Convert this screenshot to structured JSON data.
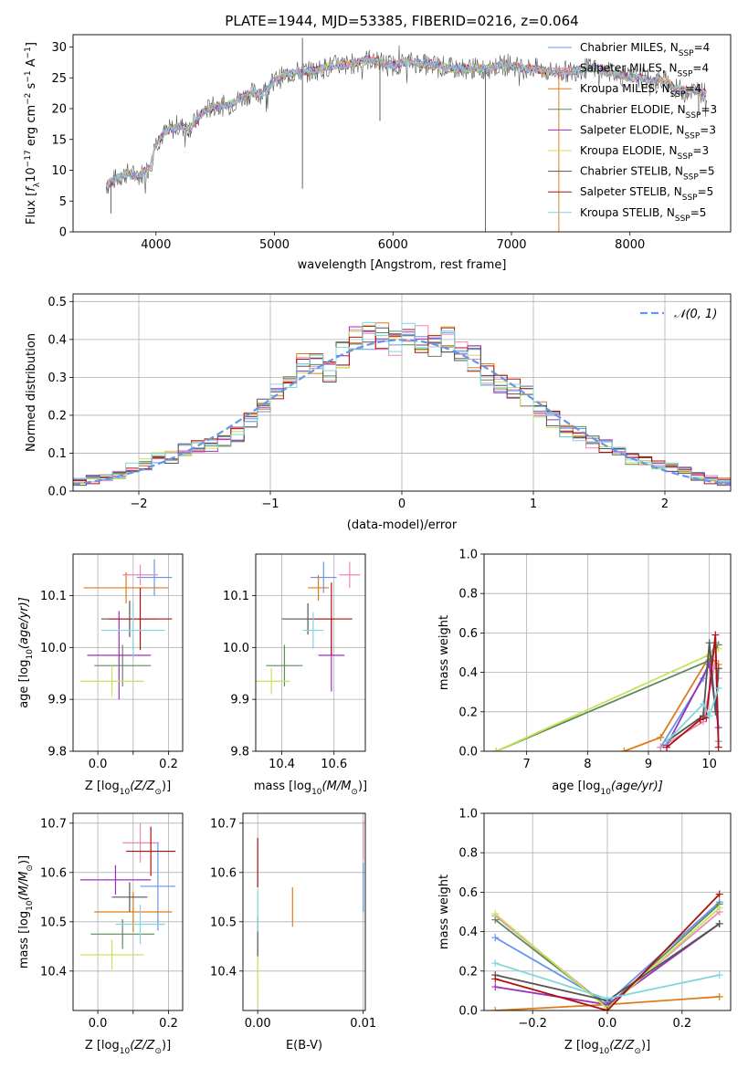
{
  "colors": {
    "chabrier_miles": "#6495ed",
    "salpeter_miles": "#e88ab6",
    "kroupa_miles": "#e07b1a",
    "chabrier_elodie": "#5c8a5a",
    "salpeter_elodie": "#9b30b8",
    "kroupa_elodie": "#c8e35a",
    "chabrier_stelib": "#555555",
    "salpeter_stelib": "#b01010",
    "kroupa_stelib": "#7fd6de",
    "normal": "#6495ed",
    "grid": "#b0b0b0"
  },
  "chart_data": [
    {
      "id": "spectrum",
      "type": "line",
      "title": "PLATE=1944, MJD=53385, FIBERID=0216, z=0.064",
      "xlabel": "wavelength [Angstrom, rest frame]",
      "ylabel_main": "Flux [",
      "ylabel_tail": " erg cm",
      "xlim": [
        3300,
        8850
      ],
      "ylim": [
        0,
        32
      ],
      "xticks": [
        4000,
        5000,
        6000,
        7000,
        8000
      ],
      "yticks": [
        0,
        5,
        10,
        15,
        20,
        25,
        30
      ],
      "grid": false,
      "legend_position": "top-right",
      "legend": [
        {
          "label": "Chabrier MILES, N",
          "n": "=4",
          "color_key": "chabrier_miles"
        },
        {
          "label": "Salpeter MILES, N",
          "n": "=4",
          "color_key": "salpeter_miles"
        },
        {
          "label": "Kroupa MILES, N",
          "n": "=4",
          "color_key": "kroupa_miles"
        },
        {
          "label": "Chabrier ELODIE, N",
          "n": "=3",
          "color_key": "chabrier_elodie"
        },
        {
          "label": "Salpeter ELODIE, N",
          "n": "=3",
          "color_key": "salpeter_elodie"
        },
        {
          "label": "Kroupa ELODIE, N",
          "n": "=3",
          "color_key": "kroupa_elodie"
        },
        {
          "label": "Chabrier STELIB, N",
          "n": "=5",
          "color_key": "chabrier_stelib"
        },
        {
          "label": "Salpeter STELIB, N",
          "n": "=5",
          "color_key": "salpeter_stelib"
        },
        {
          "label": "Kroupa STELIB, N",
          "n": "=5",
          "color_key": "kroupa_stelib"
        }
      ],
      "data_continuum": {
        "x": [
          3580,
          3650,
          3750,
          3850,
          3950,
          4000,
          4100,
          4200,
          4300,
          4400,
          4500,
          4600,
          4700,
          4800,
          4900,
          5000,
          5100,
          5200,
          5300,
          5400,
          5500,
          5600,
          5700,
          5800,
          5900,
          6000,
          6100,
          6200,
          6300,
          6400,
          6500,
          6600,
          6700,
          6800,
          6900,
          7000,
          7100,
          7200,
          7300,
          7400,
          7500,
          7600,
          7700,
          7800,
          7900,
          8000,
          8100,
          8200,
          8300,
          8400,
          8500,
          8650
        ],
        "y": [
          7.5,
          8.5,
          9.5,
          9,
          10.5,
          14.5,
          16.5,
          17,
          17,
          19.5,
          20.5,
          20.5,
          21.5,
          22.5,
          22.5,
          24.5,
          25.5,
          26,
          26,
          26.5,
          27,
          27,
          27.5,
          28,
          27.5,
          27,
          27.5,
          27.5,
          27,
          27,
          26.5,
          26.5,
          26.5,
          26.5,
          27,
          27,
          26.5,
          26.5,
          26,
          26,
          26,
          26.5,
          26.5,
          26,
          25.5,
          25,
          25,
          24.5,
          24.5,
          23,
          23,
          22.5
        ]
      },
      "spikes": [
        {
          "x": 3620,
          "y": 3
        },
        {
          "x": 5236,
          "y": 31.5
        },
        {
          "x": 5236,
          "y": 7
        },
        {
          "x": 5890,
          "y": 18
        },
        {
          "x": 6780,
          "y": 0
        },
        {
          "x": 7400,
          "y": 0
        },
        {
          "x": 8580,
          "y": 19
        }
      ]
    },
    {
      "id": "residuals",
      "type": "histogram",
      "xlabel": "(data-model)/error",
      "ylabel": "Normed distribution",
      "xlim": [
        -2.5,
        2.5
      ],
      "ylim": [
        0,
        0.52
      ],
      "xticks": [
        -2,
        -1,
        0,
        1,
        2
      ],
      "yticks": [
        0.0,
        0.1,
        0.2,
        0.3,
        0.4,
        0.5
      ],
      "grid": true,
      "legend_position": "top-right",
      "legend_label": "𝒩(0, 1)",
      "bin_edges": [
        -2.5,
        -2.4,
        -2.3,
        -2.2,
        -2.1,
        -2.0,
        -1.9,
        -1.8,
        -1.7,
        -1.6,
        -1.5,
        -1.4,
        -1.3,
        -1.2,
        -1.1,
        -1.0,
        -0.9,
        -0.8,
        -0.7,
        -0.6,
        -0.5,
        -0.4,
        -0.3,
        -0.2,
        -0.1,
        0.0,
        0.1,
        0.2,
        0.3,
        0.4,
        0.5,
        0.6,
        0.7,
        0.8,
        0.9,
        1.0,
        1.1,
        1.2,
        1.3,
        1.4,
        1.5,
        1.6,
        1.7,
        1.8,
        1.9,
        2.0,
        2.1,
        2.2,
        2.3,
        2.4,
        2.5
      ],
      "base_counts": [
        0.025,
        0.03,
        0.035,
        0.045,
        0.06,
        0.07,
        0.085,
        0.09,
        0.11,
        0.12,
        0.12,
        0.13,
        0.15,
        0.19,
        0.22,
        0.27,
        0.3,
        0.33,
        0.34,
        0.32,
        0.36,
        0.4,
        0.41,
        0.41,
        0.39,
        0.41,
        0.4,
        0.39,
        0.4,
        0.38,
        0.35,
        0.31,
        0.29,
        0.27,
        0.25,
        0.22,
        0.19,
        0.16,
        0.15,
        0.13,
        0.12,
        0.1,
        0.085,
        0.075,
        0.07,
        0.06,
        0.05,
        0.04,
        0.03,
        0.025
      ],
      "normal_curve": {
        "mu": 0,
        "sigma": 1
      }
    },
    {
      "id": "age_vs_Z",
      "type": "errorbar",
      "xlabel": "Z [log",
      "xlabel_tail": "(Z/Z",
      "ylabel": "age  [log",
      "ylabel_tail": "(age/yr)]",
      "xlim": [
        -0.07,
        0.24
      ],
      "ylim": [
        9.8,
        10.18
      ],
      "xticks": [
        0.0,
        0.1,
        0.2
      ],
      "xtick_labels": [
        "0.0",
        "0.2"
      ],
      "yticks": [
        9.8,
        9.9,
        10.0,
        10.1
      ],
      "points": [
        {
          "color_key": "chabrier_miles",
          "x": 0.16,
          "xerr": 0.05,
          "y": 10.135,
          "yerr": 0.035
        },
        {
          "color_key": "salpeter_miles",
          "x": 0.12,
          "xerr": 0.05,
          "y": 10.14,
          "yerr": 0.02
        },
        {
          "color_key": "kroupa_miles",
          "x": 0.08,
          "xerr": 0.12,
          "y": 10.115,
          "yerr": 0.03
        },
        {
          "color_key": "chabrier_elodie",
          "x": 0.07,
          "xerr": 0.08,
          "y": 9.965,
          "yerr": 0.04
        },
        {
          "color_key": "salpeter_elodie",
          "x": 0.06,
          "xerr": 0.09,
          "y": 9.985,
          "yerr": 0.085
        },
        {
          "color_key": "kroupa_elodie",
          "x": 0.04,
          "xerr": 0.09,
          "y": 9.935,
          "yerr": 0.03
        },
        {
          "color_key": "chabrier_stelib",
          "x": 0.09,
          "xerr": 0.08,
          "y": 10.055,
          "yerr": 0.035
        },
        {
          "color_key": "salpeter_stelib",
          "x": 0.12,
          "xerr": 0.09,
          "y": 10.055,
          "yerr": 0.06
        },
        {
          "color_key": "kroupa_stelib",
          "x": 0.1,
          "xerr": 0.09,
          "y": 10.033,
          "yerr": 0.055
        }
      ]
    },
    {
      "id": "age_vs_mass",
      "type": "errorbar",
      "xlabel": "mass [log",
      "xlabel_tail": "(M/M",
      "xlim": [
        10.3,
        10.72
      ],
      "ylim": [
        9.8,
        10.18
      ],
      "xticks": [
        10.4,
        10.6
      ],
      "yticks": [
        9.8,
        9.9,
        10.0,
        10.1
      ],
      "points": [
        {
          "color_key": "chabrier_miles",
          "x": 10.56,
          "xerr": 0.05,
          "y": 10.135,
          "yerr": 0.03
        },
        {
          "color_key": "salpeter_miles",
          "x": 10.66,
          "xerr": 0.04,
          "y": 10.14,
          "yerr": 0.025
        },
        {
          "color_key": "kroupa_miles",
          "x": 10.54,
          "xerr": 0.04,
          "y": 10.115,
          "yerr": 0.025
        },
        {
          "color_key": "chabrier_elodie",
          "x": 10.41,
          "xerr": 0.07,
          "y": 9.965,
          "yerr": 0.04
        },
        {
          "color_key": "salpeter_elodie",
          "x": 10.59,
          "xerr": 0.05,
          "y": 9.985,
          "yerr": 0.07
        },
        {
          "color_key": "kroupa_elodie",
          "x": 10.36,
          "xerr": 0.07,
          "y": 9.935,
          "yerr": 0.025
        },
        {
          "color_key": "chabrier_stelib",
          "x": 10.5,
          "xerr": 0.1,
          "y": 10.055,
          "yerr": 0.03
        },
        {
          "color_key": "salpeter_stelib",
          "x": 10.59,
          "xerr": 0.08,
          "y": 10.055,
          "yerr": 0.07
        },
        {
          "color_key": "kroupa_stelib",
          "x": 10.52,
          "xerr": 0.04,
          "y": 10.033,
          "yerr": 0.035
        }
      ]
    },
    {
      "id": "mass_weight_vs_age",
      "type": "line",
      "xlabel": "age  [log",
      "xlabel_tail": "(age/yr)]",
      "ylabel": "mass weight",
      "xlim": [
        6.3,
        10.35
      ],
      "ylim": [
        0,
        1.0
      ],
      "xticks": [
        7,
        8,
        9,
        10
      ],
      "yticks": [
        0.0,
        0.2,
        0.4,
        0.6,
        0.8,
        1.0
      ],
      "grid": true,
      "series": [
        {
          "color_key": "chabrier_miles",
          "x": [
            9.2,
            9.9,
            10.1,
            10.15
          ],
          "y": [
            0.02,
            0.37,
            0.55,
            0.05
          ]
        },
        {
          "color_key": "salpeter_miles",
          "x": [
            9.2,
            9.9,
            10.1,
            10.15
          ],
          "y": [
            0.02,
            0.15,
            0.46,
            0.37
          ]
        },
        {
          "color_key": "kroupa_miles",
          "x": [
            8.6,
            9.2,
            10.0,
            10.15
          ],
          "y": [
            0.0,
            0.07,
            0.48,
            0.44
          ]
        },
        {
          "color_key": "chabrier_elodie",
          "x": [
            6.5,
            10.0,
            10.15
          ],
          "y": [
            0.0,
            0.46,
            0.54
          ]
        },
        {
          "color_key": "salpeter_elodie",
          "x": [
            9.3,
            10.0,
            10.15
          ],
          "y": [
            0.03,
            0.44,
            0.12
          ]
        },
        {
          "color_key": "kroupa_elodie",
          "x": [
            6.5,
            10.0,
            10.15
          ],
          "y": [
            0.0,
            0.49,
            0.52
          ]
        },
        {
          "color_key": "chabrier_stelib",
          "x": [
            9.3,
            9.9,
            10.0,
            10.1,
            10.15
          ],
          "y": [
            0.05,
            0.18,
            0.55,
            0.2,
            0.42
          ]
        },
        {
          "color_key": "salpeter_stelib",
          "x": [
            9.3,
            9.85,
            9.95,
            10.1,
            10.15
          ],
          "y": [
            0.02,
            0.16,
            0.17,
            0.59,
            0.02
          ]
        },
        {
          "color_key": "kroupa_stelib",
          "x": [
            9.3,
            9.9,
            10.0,
            10.15
          ],
          "y": [
            0.05,
            0.24,
            0.18,
            0.32
          ]
        }
      ]
    },
    {
      "id": "mass_vs_Z",
      "type": "errorbar",
      "xlabel": "Z [log",
      "xlabel_tail": "(Z/Z",
      "ylabel": "mass [log",
      "ylabel_tail": "(M/M",
      "xlim": [
        -0.07,
        0.24
      ],
      "ylim": [
        10.32,
        10.72
      ],
      "xticks": [
        0.0,
        0.1,
        0.2
      ],
      "xtick_labels": [
        "0.0",
        "0.2"
      ],
      "yticks": [
        10.4,
        10.5,
        10.6,
        10.7
      ],
      "points": [
        {
          "color_key": "chabrier_miles",
          "x": 0.17,
          "xerr": 0.05,
          "y": 10.572,
          "yerr": 0.09
        },
        {
          "color_key": "salpeter_miles",
          "x": 0.12,
          "xerr": 0.05,
          "y": 10.66,
          "yerr": 0.04
        },
        {
          "color_key": "kroupa_miles",
          "x": 0.1,
          "xerr": 0.11,
          "y": 10.52,
          "yerr": 0.04
        },
        {
          "color_key": "chabrier_elodie",
          "x": 0.07,
          "xerr": 0.09,
          "y": 10.475,
          "yerr": 0.03
        },
        {
          "color_key": "salpeter_elodie",
          "x": 0.05,
          "xerr": 0.1,
          "y": 10.585,
          "yerr": 0.03
        },
        {
          "color_key": "kroupa_elodie",
          "x": 0.04,
          "xerr": 0.09,
          "y": 10.433,
          "yerr": 0.03
        },
        {
          "color_key": "chabrier_stelib",
          "x": 0.09,
          "xerr": 0.05,
          "y": 10.55,
          "yerr": 0.03
        },
        {
          "color_key": "salpeter_stelib",
          "x": 0.15,
          "xerr": 0.07,
          "y": 10.643,
          "yerr": 0.05
        },
        {
          "color_key": "kroupa_stelib",
          "x": 0.12,
          "xerr": 0.07,
          "y": 10.495,
          "yerr": 0.04
        }
      ]
    },
    {
      "id": "mass_vs_ebv",
      "type": "errorbar",
      "xlabel": "E(B-V)",
      "xlim": [
        -0.0014,
        0.0102
      ],
      "ylim": [
        10.32,
        10.72
      ],
      "xticks": [
        0.0,
        0.01
      ],
      "xtick_labels": [
        "0.00",
        "0.01"
      ],
      "yticks": [
        10.4,
        10.5,
        10.6,
        10.7
      ],
      "points": [
        {
          "color_key": "salpeter_stelib",
          "x": 0.0,
          "xerr": 0.0,
          "y": 10.62,
          "yerr": 0.05
        },
        {
          "color_key": "chabrier_stelib",
          "x": 0.0,
          "xerr": 0.0,
          "y": 10.47,
          "yerr": 0.04
        },
        {
          "color_key": "kroupa_elodie",
          "x": 0.0,
          "xerr": 0.0,
          "y": 10.38,
          "yerr": 0.05
        },
        {
          "color_key": "kroupa_stelib",
          "x": 0.0,
          "xerr": 0.0,
          "y": 10.52,
          "yerr": 0.04
        },
        {
          "color_key": "kroupa_miles",
          "x": 0.0033,
          "xerr": 0.0,
          "y": 10.53,
          "yerr": 0.04
        },
        {
          "color_key": "chabrier_miles",
          "x": 0.01,
          "xerr": 0.0,
          "y": 10.57,
          "yerr": 0.05
        },
        {
          "color_key": "salpeter_miles",
          "x": 0.01,
          "xerr": 0.0,
          "y": 10.665,
          "yerr": 0.04
        }
      ]
    },
    {
      "id": "mass_weight_vs_Z",
      "type": "line",
      "xlabel": "Z [log",
      "xlabel_tail": "(Z/Z",
      "ylabel": "mass weight",
      "xlim": [
        -0.33,
        0.33
      ],
      "ylim": [
        0,
        1.0
      ],
      "xticks": [
        -0.2,
        0.0,
        0.2
      ],
      "yticks": [
        0.0,
        0.2,
        0.4,
        0.6,
        0.8,
        1.0
      ],
      "grid": true,
      "series": [
        {
          "color_key": "chabrier_miles",
          "x": [
            -0.3,
            0.0,
            0.3
          ],
          "y": [
            0.37,
            0.04,
            0.55
          ]
        },
        {
          "color_key": "salpeter_miles",
          "x": [
            -0.3,
            0.0,
            0.3
          ],
          "y": [
            0.48,
            0.02,
            0.5
          ]
        },
        {
          "color_key": "kroupa_miles",
          "x": [
            -0.3,
            0.0,
            0.3
          ],
          "y": [
            0.0,
            0.03,
            0.07
          ]
        },
        {
          "color_key": "chabrier_elodie",
          "x": [
            -0.3,
            0.0,
            0.3
          ],
          "y": [
            0.46,
            0.02,
            0.54
          ]
        },
        {
          "color_key": "salpeter_elodie",
          "x": [
            -0.3,
            0.0,
            0.3
          ],
          "y": [
            0.12,
            0.03,
            0.44
          ]
        },
        {
          "color_key": "kroupa_elodie",
          "x": [
            -0.3,
            0.0,
            0.3
          ],
          "y": [
            0.49,
            0.01,
            0.52
          ]
        },
        {
          "color_key": "chabrier_stelib",
          "x": [
            -0.3,
            0.0,
            0.3
          ],
          "y": [
            0.18,
            0.05,
            0.44
          ]
        },
        {
          "color_key": "salpeter_stelib",
          "x": [
            -0.3,
            0.0,
            0.3
          ],
          "y": [
            0.16,
            0.0,
            0.59
          ]
        },
        {
          "color_key": "kroupa_stelib",
          "x": [
            -0.3,
            0.0,
            0.3
          ],
          "y": [
            0.24,
            0.06,
            0.18
          ]
        }
      ]
    }
  ]
}
